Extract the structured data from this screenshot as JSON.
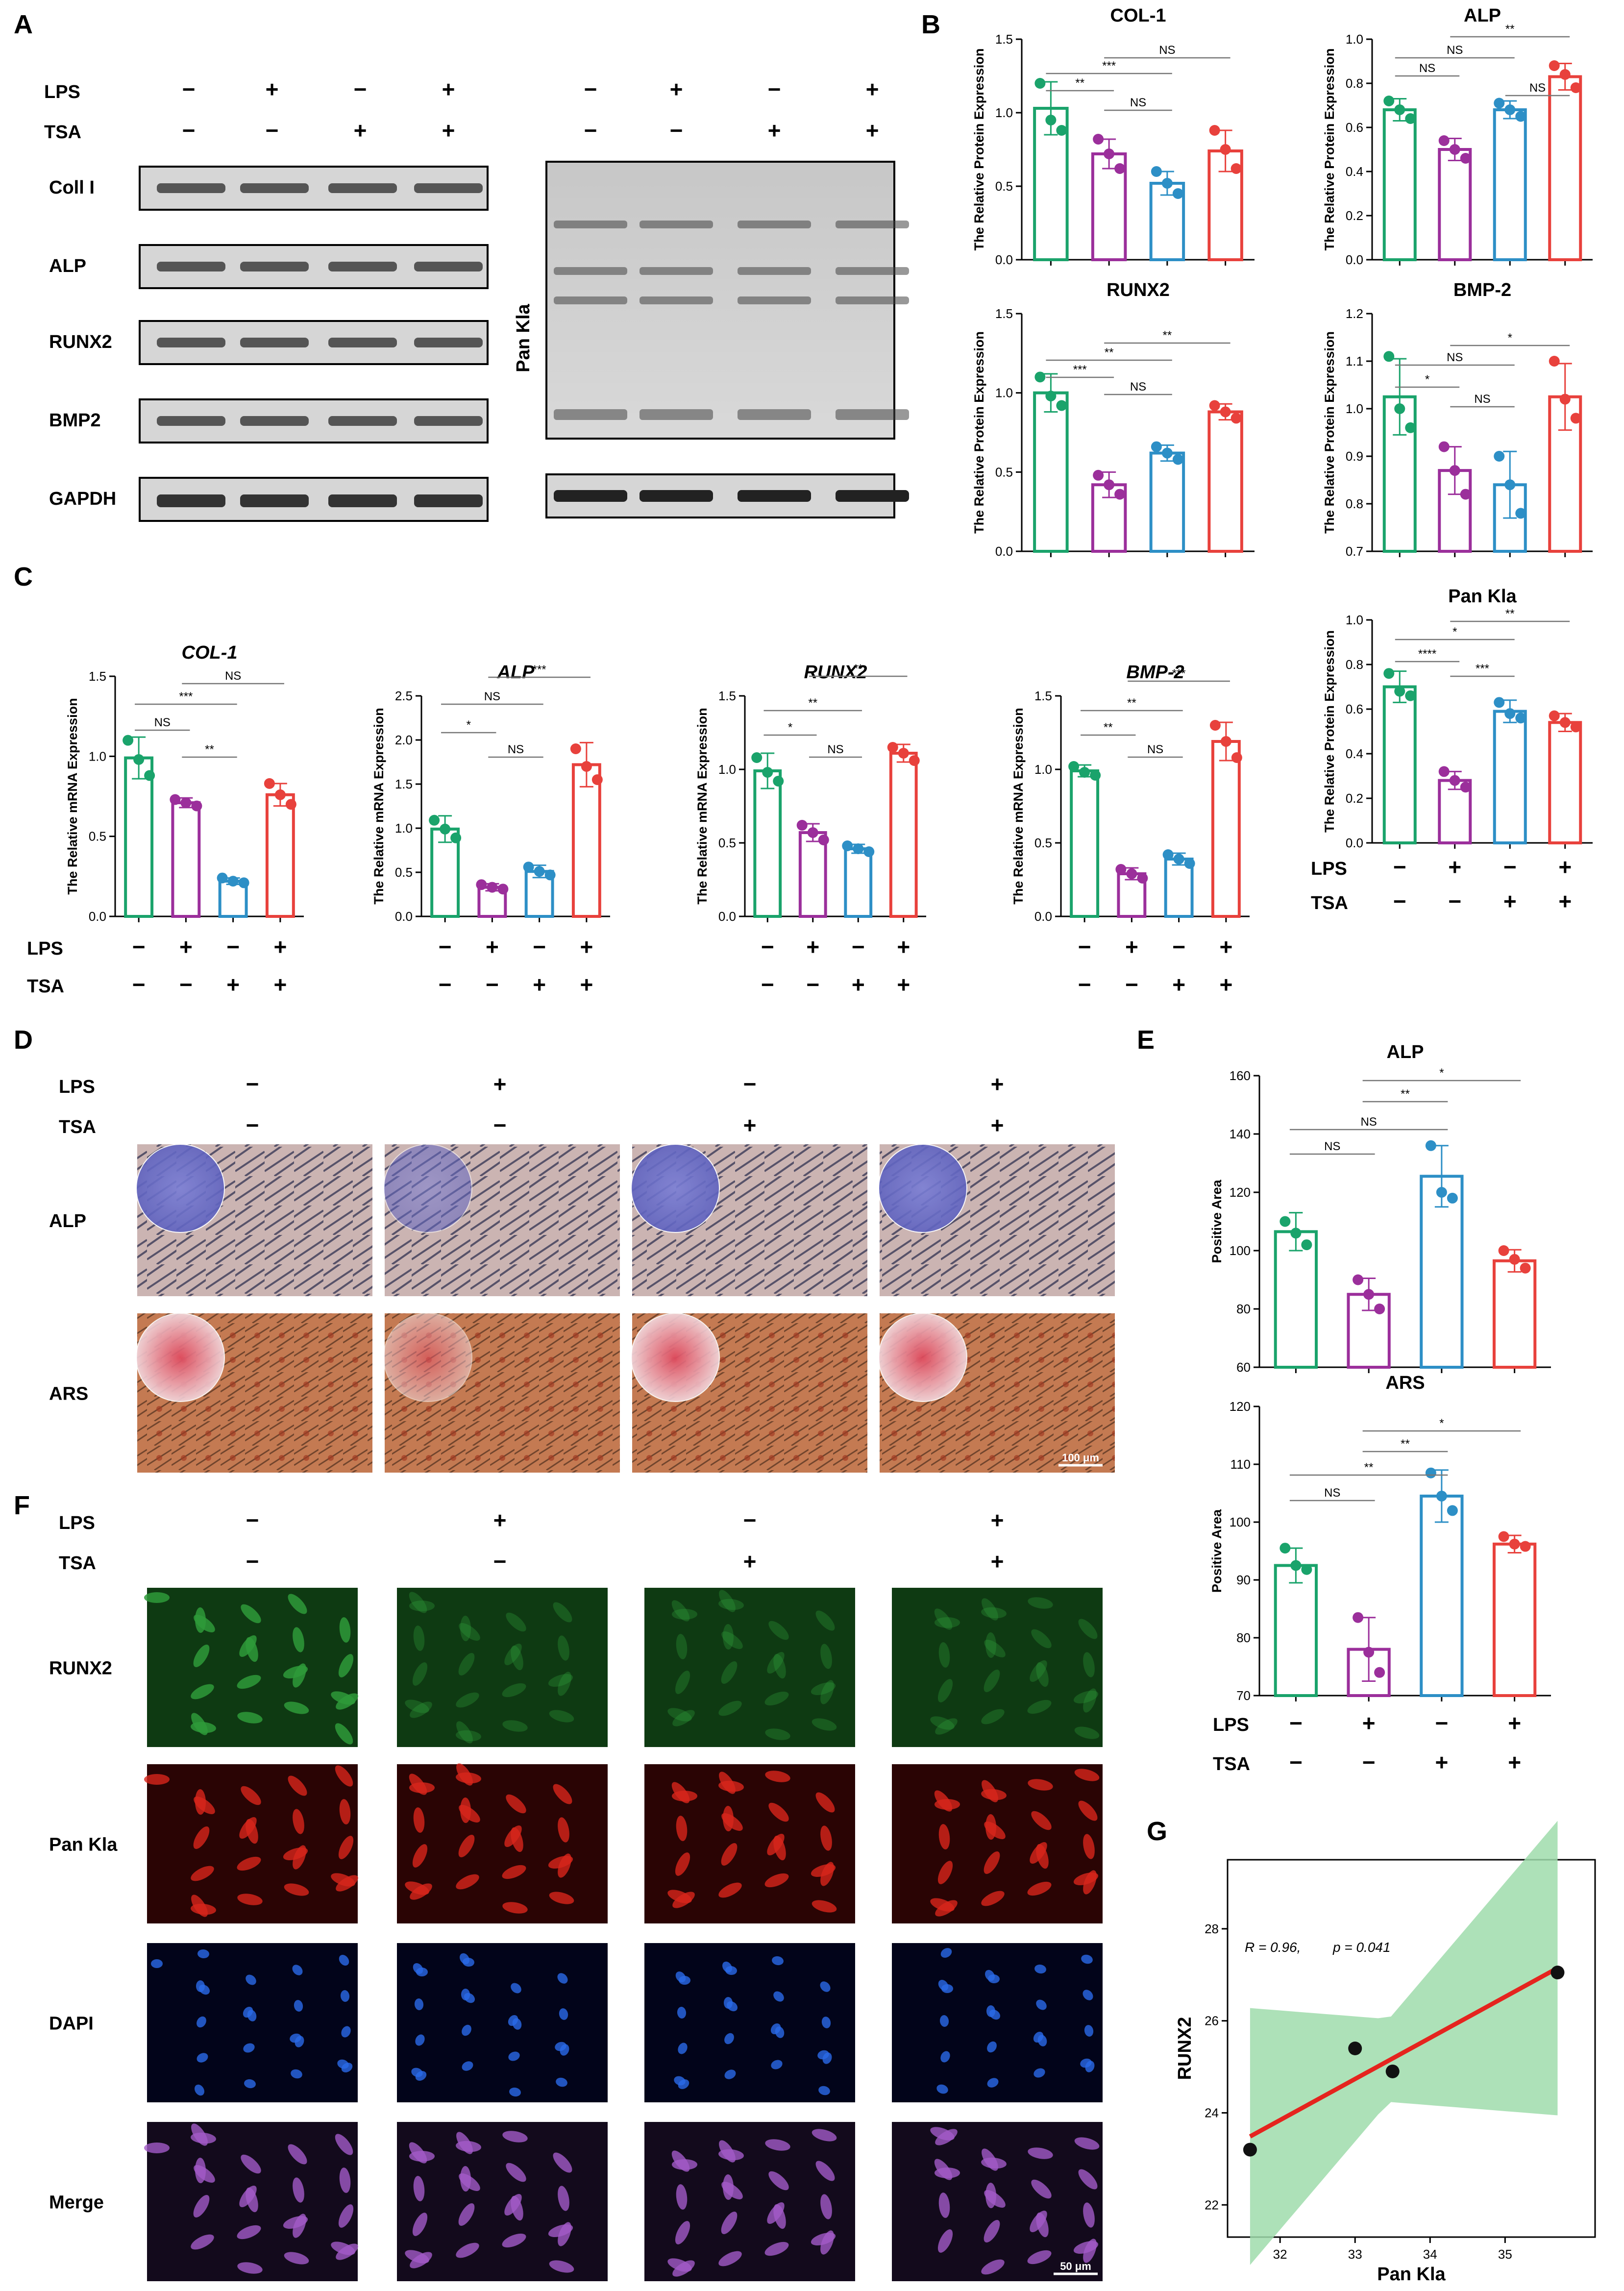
{
  "panels": {
    "A": "A",
    "B": "B",
    "C": "C",
    "D": "D",
    "E": "E",
    "F": "F",
    "G": "G"
  },
  "factors": {
    "lps": "LPS",
    "tsa": "TSA",
    "lps_signs": [
      "−",
      "+",
      "−",
      "+"
    ],
    "tsa_signs": [
      "−",
      "−",
      "+",
      "+"
    ]
  },
  "colors": {
    "group1": "#1aa36b",
    "group2": "#9b2f9b",
    "group3": "#2d8fc6",
    "group4": "#e8413c",
    "blot_bg": "#dcdcdc",
    "fit_line": "#e5241e",
    "ci_band": "#9fdcab"
  },
  "blot": {
    "rows": [
      "Coll I",
      "ALP",
      "RUNX2",
      "BMP2",
      "GAPDH"
    ],
    "right_label": "Pan Kla"
  },
  "staining": {
    "rows": [
      "ALP",
      "ARS"
    ],
    "scale_bar": "100 μm"
  },
  "fluorescence": {
    "rows": [
      "RUNX2",
      "Pan Kla",
      "DAPI",
      "Merge"
    ],
    "scale_bar": "50 μm"
  },
  "chart_data": [
    {
      "id": "B-COL1",
      "panel": "B",
      "type": "bar",
      "title": "COL-1",
      "ylabel": "The Relative Protein Expression",
      "ylim": [
        0,
        1.5
      ],
      "yticks": [
        "0.0",
        "0.5",
        "1.0",
        "1.5"
      ],
      "values": [
        1.03,
        0.72,
        0.52,
        0.74
      ],
      "errors": [
        0.18,
        0.1,
        0.08,
        0.14
      ],
      "points": [
        [
          1.2,
          0.95,
          0.88
        ],
        [
          0.82,
          0.72,
          0.62
        ],
        [
          0.6,
          0.52,
          0.45
        ],
        [
          0.88,
          0.75,
          0.62
        ]
      ],
      "significance": [
        {
          "a": 0,
          "b": 1,
          "label": "**"
        },
        {
          "a": 0,
          "b": 2,
          "label": "***"
        },
        {
          "a": 1,
          "b": 2,
          "label": "NS"
        },
        {
          "a": 1,
          "b": 3,
          "label": "NS"
        }
      ]
    },
    {
      "id": "B-ALP",
      "panel": "B",
      "type": "bar",
      "title": "ALP",
      "ylabel": "The Relative Protein Expression",
      "ylim": [
        0,
        1.0
      ],
      "yticks": [
        "0.0",
        "0.2",
        "0.4",
        "0.6",
        "0.8",
        "1.0"
      ],
      "values": [
        0.68,
        0.5,
        0.68,
        0.83
      ],
      "errors": [
        0.05,
        0.05,
        0.04,
        0.06
      ],
      "points": [
        [
          0.72,
          0.68,
          0.64
        ],
        [
          0.54,
          0.5,
          0.46
        ],
        [
          0.71,
          0.68,
          0.65
        ],
        [
          0.88,
          0.84,
          0.78
        ]
      ],
      "significance": [
        {
          "a": 0,
          "b": 1,
          "label": "NS"
        },
        {
          "a": 0,
          "b": 2,
          "label": "NS"
        },
        {
          "a": 1,
          "b": 3,
          "label": "**"
        },
        {
          "a": 2,
          "b": 3,
          "label": "NS"
        }
      ]
    },
    {
      "id": "B-RUNX2",
      "panel": "B",
      "type": "bar",
      "title": "RUNX2",
      "ylabel": "The Relative Protein Expression",
      "ylim": [
        0,
        1.5
      ],
      "yticks": [
        "0.0",
        "0.5",
        "1.0",
        "1.5"
      ],
      "values": [
        1.0,
        0.42,
        0.62,
        0.88
      ],
      "errors": [
        0.12,
        0.08,
        0.05,
        0.05
      ],
      "points": [
        [
          1.1,
          0.98,
          0.92
        ],
        [
          0.48,
          0.42,
          0.36
        ],
        [
          0.66,
          0.62,
          0.58
        ],
        [
          0.92,
          0.88,
          0.84
        ]
      ],
      "significance": [
        {
          "a": 0,
          "b": 1,
          "label": "***"
        },
        {
          "a": 0,
          "b": 2,
          "label": "**"
        },
        {
          "a": 1,
          "b": 2,
          "label": "NS"
        },
        {
          "a": 1,
          "b": 3,
          "label": "**"
        }
      ]
    },
    {
      "id": "B-BMP2",
      "panel": "B",
      "type": "bar",
      "title": "BMP-2",
      "ylabel": "The Relative Protein Expression",
      "ylim": [
        0.7,
        1.2
      ],
      "yticks": [
        "0.7",
        "0.8",
        "0.9",
        "1.0",
        "1.1",
        "1.2"
      ],
      "values": [
        1.025,
        0.87,
        0.84,
        1.025
      ],
      "errors": [
        0.08,
        0.05,
        0.07,
        0.07
      ],
      "points": [
        [
          1.11,
          1.0,
          0.96
        ],
        [
          0.92,
          0.87,
          0.82
        ],
        [
          0.9,
          0.84,
          0.78
        ],
        [
          1.1,
          1.02,
          0.98
        ]
      ],
      "significance": [
        {
          "a": 0,
          "b": 1,
          "label": "*"
        },
        {
          "a": 0,
          "b": 2,
          "label": "NS"
        },
        {
          "a": 1,
          "b": 3,
          "label": "*"
        },
        {
          "a": 1,
          "b": 2,
          "label": "NS"
        }
      ]
    },
    {
      "id": "B-PanKla",
      "panel": "B",
      "type": "bar",
      "title": "Pan Kla",
      "ylabel": "The Relative Protein Expression",
      "ylim": [
        0,
        1.0
      ],
      "yticks": [
        "0.0",
        "0.2",
        "0.4",
        "0.6",
        "0.8",
        "1.0"
      ],
      "values": [
        0.7,
        0.28,
        0.59,
        0.54
      ],
      "errors": [
        0.07,
        0.04,
        0.05,
        0.04
      ],
      "points": [
        [
          0.76,
          0.68,
          0.66
        ],
        [
          0.32,
          0.28,
          0.25
        ],
        [
          0.63,
          0.58,
          0.56
        ],
        [
          0.57,
          0.54,
          0.52
        ]
      ],
      "significance": [
        {
          "a": 0,
          "b": 1,
          "label": "****"
        },
        {
          "a": 0,
          "b": 2,
          "label": "*"
        },
        {
          "a": 1,
          "b": 2,
          "label": "***"
        },
        {
          "a": 1,
          "b": 3,
          "label": "**"
        }
      ]
    },
    {
      "id": "C-COL1",
      "panel": "C",
      "type": "bar",
      "title": "COL-1",
      "ylabel": "The Relative mRNA Expression",
      "ylim": [
        0,
        1.5
      ],
      "yticks": [
        "0.0",
        "0.5",
        "1.0",
        "1.5"
      ],
      "values": [
        0.99,
        0.71,
        0.22,
        0.76
      ],
      "errors": [
        0.13,
        0.03,
        0.02,
        0.07
      ],
      "points": [
        [
          1.1,
          0.98,
          0.88
        ],
        [
          0.73,
          0.71,
          0.69
        ],
        [
          0.24,
          0.22,
          0.21
        ],
        [
          0.83,
          0.76,
          0.7
        ]
      ],
      "significance": [
        {
          "a": 0,
          "b": 1,
          "label": "NS"
        },
        {
          "a": 0,
          "b": 2,
          "label": "***"
        },
        {
          "a": 1,
          "b": 2,
          "label": "**"
        },
        {
          "a": 1,
          "b": 3,
          "label": "NS"
        }
      ]
    },
    {
      "id": "C-ALP",
      "panel": "C",
      "type": "bar",
      "title": "ALP",
      "ylabel": "The Relative mRNA Expression",
      "ylim": [
        0,
        2.5
      ],
      "yticks": [
        "0.0",
        "0.5",
        "1.0",
        "1.5",
        "2.0",
        "2.5"
      ],
      "values": [
        0.99,
        0.33,
        0.51,
        1.72
      ],
      "errors": [
        0.15,
        0.04,
        0.07,
        0.25
      ],
      "points": [
        [
          1.09,
          0.99,
          0.89
        ],
        [
          0.36,
          0.33,
          0.31
        ],
        [
          0.56,
          0.51,
          0.47
        ],
        [
          1.9,
          1.7,
          1.55
        ]
      ],
      "significance": [
        {
          "a": 0,
          "b": 1,
          "label": "*"
        },
        {
          "a": 0,
          "b": 2,
          "label": "NS"
        },
        {
          "a": 1,
          "b": 3,
          "label": "***"
        },
        {
          "a": 1,
          "b": 2,
          "label": "NS"
        }
      ]
    },
    {
      "id": "C-RUNX2",
      "panel": "C",
      "type": "bar",
      "title": "RUNX2",
      "ylabel": "The Relative mRNA Expression",
      "ylim": [
        0,
        1.5
      ],
      "yticks": [
        "0.0",
        "0.5",
        "1.0",
        "1.5"
      ],
      "values": [
        0.99,
        0.57,
        0.46,
        1.11
      ],
      "errors": [
        0.12,
        0.06,
        0.03,
        0.06
      ],
      "points": [
        [
          1.08,
          0.98,
          0.92
        ],
        [
          0.62,
          0.57,
          0.52
        ],
        [
          0.48,
          0.46,
          0.44
        ],
        [
          1.15,
          1.11,
          1.06
        ]
      ],
      "significance": [
        {
          "a": 0,
          "b": 1,
          "label": "*"
        },
        {
          "a": 0,
          "b": 2,
          "label": "**"
        },
        {
          "a": 1,
          "b": 3,
          "label": "**"
        },
        {
          "a": 1,
          "b": 2,
          "label": "NS"
        }
      ]
    },
    {
      "id": "C-BMP2",
      "panel": "C",
      "type": "bar",
      "title": "BMP-2",
      "ylabel": "The Relative mRNA Expression",
      "ylim": [
        0,
        1.5
      ],
      "yticks": [
        "0.0",
        "0.5",
        "1.0",
        "1.5"
      ],
      "values": [
        0.99,
        0.29,
        0.39,
        1.19
      ],
      "errors": [
        0.04,
        0.04,
        0.04,
        0.13
      ],
      "points": [
        [
          1.02,
          0.98,
          0.96
        ],
        [
          0.32,
          0.29,
          0.26
        ],
        [
          0.42,
          0.39,
          0.36
        ],
        [
          1.3,
          1.19,
          1.08
        ]
      ],
      "significance": [
        {
          "a": 0,
          "b": 1,
          "label": "**"
        },
        {
          "a": 0,
          "b": 2,
          "label": "**"
        },
        {
          "a": 1,
          "b": 3,
          "label": "***"
        },
        {
          "a": 1,
          "b": 2,
          "label": "NS"
        }
      ]
    },
    {
      "id": "E-ALP",
      "panel": "E",
      "type": "bar",
      "title": "ALP",
      "ylabel": "Positive Area",
      "ylim": [
        60,
        160
      ],
      "yticks": [
        "60",
        "80",
        "100",
        "120",
        "140",
        "160"
      ],
      "values": [
        106.5,
        85,
        125.5,
        96.5
      ],
      "errors": [
        6.5,
        5.5,
        10.5,
        3.8
      ],
      "points": [
        [
          110,
          106,
          102
        ],
        [
          90,
          85,
          80
        ],
        [
          136,
          120,
          118
        ],
        [
          100,
          97,
          94
        ]
      ],
      "significance": [
        {
          "a": 0,
          "b": 1,
          "label": "NS"
        },
        {
          "a": 0,
          "b": 2,
          "label": "NS"
        },
        {
          "a": 1,
          "b": 2,
          "label": "**"
        },
        {
          "a": 1,
          "b": 3,
          "label": "*"
        }
      ]
    },
    {
      "id": "E-ARS",
      "panel": "E",
      "type": "bar",
      "title": "ARS",
      "ylabel": "Positive Area",
      "ylim": [
        70,
        120
      ],
      "yticks": [
        "70",
        "80",
        "90",
        "100",
        "110",
        "120"
      ],
      "values": [
        92.5,
        78,
        104.5,
        96.2
      ],
      "errors": [
        3,
        5.5,
        4.5,
        1.5
      ],
      "points": [
        [
          95.5,
          92.5,
          91.8
        ],
        [
          83.5,
          77.5,
          74
        ],
        [
          108.5,
          104.5,
          102
        ],
        [
          97.5,
          96.2,
          95.8
        ]
      ],
      "significance": [
        {
          "a": 0,
          "b": 1,
          "label": "NS"
        },
        {
          "a": 0,
          "b": 2,
          "label": "**"
        },
        {
          "a": 1,
          "b": 2,
          "label": "**"
        },
        {
          "a": 1,
          "b": 3,
          "label": "*"
        }
      ]
    },
    {
      "id": "G",
      "panel": "G",
      "type": "scatter",
      "xlabel": "Pan Kla",
      "ylabel": "RUNX2",
      "xlim": [
        31.3,
        36.2
      ],
      "ylim": [
        21.3,
        29.5
      ],
      "xticks": [
        32,
        33,
        34,
        35
      ],
      "yticks": [
        22,
        24,
        26,
        28
      ],
      "x": [
        31.6,
        33.0,
        33.5,
        35.7
      ],
      "y": [
        23.2,
        25.4,
        24.9,
        27.05
      ],
      "annotation_r": "R = 0.96,",
      "annotation_p": "p = 0.041"
    }
  ]
}
